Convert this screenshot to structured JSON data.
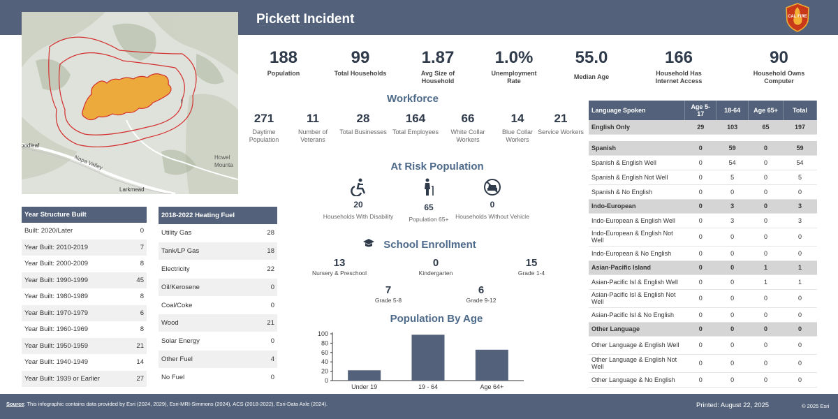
{
  "header": {
    "title": "Pickett Incident",
    "logo_text": "CAL FIRE"
  },
  "map": {
    "labels": [
      "oodleaf",
      "Howel",
      "Mounta",
      "Napa Valley",
      "Larkmead",
      "f"
    ]
  },
  "stats": [
    {
      "value": "188",
      "label": "Population"
    },
    {
      "value": "99",
      "label": "Total Households"
    },
    {
      "value": "1.87",
      "label": "Avg Size of Household"
    },
    {
      "value": "1.0%",
      "label": "Unemployment Rate"
    },
    {
      "value": "55.0",
      "label": "Median Age"
    },
    {
      "value": "166",
      "label": "Household Has Internet Access"
    },
    {
      "value": "90",
      "label": "Household Owns Computer"
    }
  ],
  "workforce": {
    "title": "Workforce",
    "items": [
      {
        "value": "271",
        "label": "Daytime Population"
      },
      {
        "value": "11",
        "label": "Number of Veterans"
      },
      {
        "value": "28",
        "label": "Total Businesses"
      },
      {
        "value": "164",
        "label": "Total Employees"
      },
      {
        "value": "66",
        "label": "White Collar Workers"
      },
      {
        "value": "14",
        "label": "Blue Collar Workers"
      },
      {
        "value": "21",
        "label": "Service Workers"
      }
    ]
  },
  "at_risk": {
    "title": "At Risk Population",
    "items": [
      {
        "value": "20",
        "label": "Households With Disability",
        "icon": "wheelchair-icon"
      },
      {
        "value": "65",
        "label": "Population 65+",
        "icon": "elderly-person-icon"
      },
      {
        "value": "0",
        "label": "Households Without Vehicle",
        "icon": "no-vehicle-icon"
      }
    ]
  },
  "school": {
    "title": "School Enrollment",
    "icon": "graduation-cap-icon",
    "items": [
      {
        "value": "13",
        "label": "Nursery & Preschool"
      },
      {
        "value": "0",
        "label": "Kindergarten"
      },
      {
        "value": "15",
        "label": "Grade 1-4"
      },
      {
        "value": "7",
        "label": "Grade 5-8"
      },
      {
        "value": "6",
        "label": "Grade 9-12"
      }
    ]
  },
  "chart_data": {
    "type": "bar",
    "title": "Population By Age",
    "categories": [
      "Under 19",
      "19 - 64",
      "Age 64+"
    ],
    "values": [
      22,
      98,
      66
    ],
    "ylim": [
      0,
      100
    ],
    "yticks": [
      "0",
      "20",
      "40",
      "60",
      "80",
      "100"
    ],
    "bar_color": "#53627a"
  },
  "year_built": {
    "header": "Year Structure Built",
    "rows": [
      {
        "label": "Built: 2020/Later",
        "value": "0"
      },
      {
        "label": "Year Built: 2010-2019",
        "value": "7"
      },
      {
        "label": "Year Built: 2000-2009",
        "value": "8"
      },
      {
        "label": "Year Built: 1990-1999",
        "value": "45"
      },
      {
        "label": "Year Built: 1980-1989",
        "value": "8"
      },
      {
        "label": "Year Built: 1970-1979",
        "value": "6"
      },
      {
        "label": "Year Built: 1960-1969",
        "value": "8"
      },
      {
        "label": "Year Built: 1950-1959",
        "value": "21"
      },
      {
        "label": "Year Built: 1940-1949",
        "value": "14"
      },
      {
        "label": "Year Built: 1939 or Earlier",
        "value": "27"
      }
    ]
  },
  "heating_fuel": {
    "header": "2018-2022 Heating Fuel",
    "rows": [
      {
        "label": "Utility Gas",
        "value": "28"
      },
      {
        "label": "Tank/LP Gas",
        "value": "18"
      },
      {
        "label": "Electricity",
        "value": "22"
      },
      {
        "label": "Oil/Kerosene",
        "value": "0"
      },
      {
        "label": "Coal/Coke",
        "value": "0"
      },
      {
        "label": "Wood",
        "value": "21"
      },
      {
        "label": "Solar Energy",
        "value": "0"
      },
      {
        "label": "Other Fuel",
        "value": "4"
      },
      {
        "label": "No Fuel",
        "value": "0"
      }
    ]
  },
  "language": {
    "headers": [
      "Language Spoken",
      "Age 5-17",
      "18-64",
      "Age 65+",
      "Total"
    ],
    "rows": [
      {
        "kind": "grp",
        "cells": [
          "English Only",
          "29",
          "103",
          "65",
          "197"
        ]
      },
      {
        "kind": "gap",
        "cells": []
      },
      {
        "kind": "grp",
        "cells": [
          "Spanish",
          "0",
          "59",
          "0",
          "59"
        ]
      },
      {
        "kind": "row",
        "cells": [
          "Spanish & English Well",
          "0",
          "54",
          "0",
          "54"
        ]
      },
      {
        "kind": "row",
        "cells": [
          "Spanish & English Not Well",
          "0",
          "5",
          "0",
          "5"
        ]
      },
      {
        "kind": "row",
        "cells": [
          "Spanish & No English",
          "0",
          "0",
          "0",
          "0"
        ]
      },
      {
        "kind": "grp",
        "cells": [
          "Indo-European",
          "0",
          "3",
          "0",
          "3"
        ]
      },
      {
        "kind": "row",
        "cells": [
          "Indo-European & English Well",
          "0",
          "3",
          "0",
          "3"
        ]
      },
      {
        "kind": "tall",
        "cells": [
          "Indo-European & English Not Well",
          "0",
          "0",
          "0",
          "0"
        ]
      },
      {
        "kind": "row",
        "cells": [
          "Indo-European & No English",
          "0",
          "0",
          "0",
          "0"
        ]
      },
      {
        "kind": "grp",
        "cells": [
          "Asian-Pacific Island",
          "0",
          "0",
          "1",
          "1"
        ]
      },
      {
        "kind": "row",
        "cells": [
          "Asian-Pacific Isl & English Well",
          "0",
          "0",
          "1",
          "1"
        ]
      },
      {
        "kind": "tall",
        "cells": [
          "Asian-Pacific Isl & English Not Well",
          "0",
          "0",
          "0",
          "0"
        ]
      },
      {
        "kind": "row",
        "cells": [
          "Asian-Pacific Isl & No English",
          "0",
          "0",
          "0",
          "0"
        ]
      },
      {
        "kind": "grp",
        "cells": [
          "Other Language",
          "0",
          "0",
          "0",
          "0"
        ]
      },
      {
        "kind": "tall",
        "cells": [
          "Other Language & English Well",
          "0",
          "0",
          "0",
          "0"
        ]
      },
      {
        "kind": "tall",
        "cells": [
          "Other Language & English Not Well",
          "0",
          "0",
          "0",
          "0"
        ]
      },
      {
        "kind": "row",
        "cells": [
          "Other Language & No English",
          "0",
          "0",
          "0",
          "0"
        ]
      }
    ]
  },
  "footer": {
    "source_label": "Source",
    "source_text": ": This infographic contains data provided by Esri (2024, 2029), Esri-MRI-Simmons (2024), ACS (2018-2022), Esri-Data Axle (2024).",
    "printed": "Printed: August 22, 2025",
    "copyright": "© 2025 Esri"
  }
}
